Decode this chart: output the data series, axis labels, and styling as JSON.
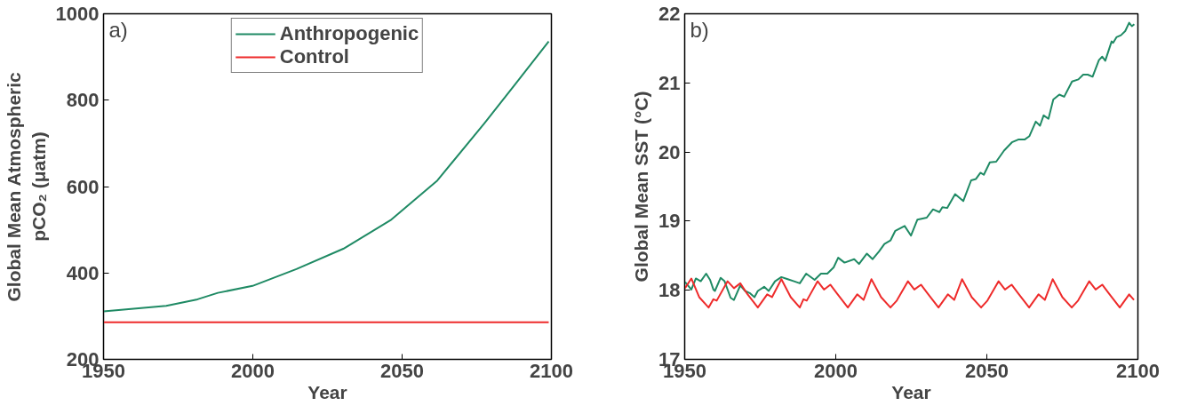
{
  "chart_data": [
    {
      "type": "line",
      "xlabel": "Year",
      "ylabel": "Global Mean Atmospheric\npCO₂ (μatm)",
      "annotations": [
        "a)"
      ],
      "xlim": [
        1950,
        2100
      ],
      "ylim": [
        200,
        1000
      ],
      "xticks": [
        1950,
        2000,
        2050,
        2100
      ],
      "yticks": [
        200,
        400,
        600,
        800,
        1000
      ],
      "grid": false,
      "legend": "top",
      "series": [
        {
          "name": "Anthropogenic",
          "color": "#1f8a64",
          "x": [
            1950,
            1971,
            1981.5,
            1988.3,
            1999.9,
            2014.6,
            2030.3,
            2046.1,
            2061.8,
            2077.6,
            2088.1,
            2099.1
          ],
          "values": [
            311,
            324,
            339,
            354,
            370,
            409,
            456,
            522,
            614,
            747,
            839,
            936
          ]
        },
        {
          "name": "Control",
          "color": "#ee2b2b",
          "x": [
            1950,
            2099.1
          ],
          "values": [
            286,
            286
          ]
        }
      ]
    },
    {
      "type": "line",
      "xlabel": "Year",
      "ylabel": "Global Mean SST (°C)",
      "annotations": [
        "b)"
      ],
      "xlim": [
        1950,
        2100
      ],
      "ylim": [
        17,
        22
      ],
      "xticks": [
        1950,
        2000,
        2050,
        2100
      ],
      "yticks": [
        17,
        18,
        19,
        20,
        21,
        22
      ],
      "grid": false,
      "series": [
        {
          "color": "#1f8a64",
          "x": [
            1950.1,
            1952.2,
            1953.7,
            1955.3,
            1957.1,
            1958.4,
            1959.5,
            1960.0,
            1961.9,
            1963.2,
            1965.2,
            1966.3,
            1968.4,
            1970.0,
            1971.5,
            1973.1,
            1974.2,
            1976.3,
            1977.8,
            1979.9,
            1982.0,
            1984.1,
            1986.2,
            1988.1,
            1990.2,
            1993.0,
            1995.1,
            1997.2,
            1999.3,
            2000.8,
            2002.9,
            2006.1,
            2007.7,
            2010.3,
            2012.2,
            2014.3,
            2016.1,
            2018.1,
            2019.7,
            2022.8,
            2024.9,
            2027.0,
            2030.1,
            2032.2,
            2034.3,
            2035.3,
            2036.9,
            2039.5,
            2042.2,
            2044.8,
            2046.4,
            2047.9,
            2049.0,
            2051.0,
            2053.1,
            2055.7,
            2058.3,
            2060.4,
            2062.5,
            2064.1,
            2066.2,
            2067.6,
            2068.8,
            2070.4,
            2072.0,
            2074.0,
            2075.6,
            2078.2,
            2080.3,
            2081.9,
            2083.4,
            2085.0,
            2087.1,
            2088.2,
            2089.2,
            2091.3,
            2091.8,
            2092.9,
            2094.4,
            2095.8,
            2097.1,
            2098.0,
            2098.8
          ],
          "values": [
            18.12,
            18.01,
            18.17,
            18.13,
            18.24,
            18.15,
            18.01,
            17.99,
            18.18,
            18.13,
            17.89,
            17.86,
            18.07,
            17.99,
            17.96,
            17.9,
            17.99,
            18.05,
            17.99,
            18.13,
            18.19,
            18.16,
            18.13,
            18.1,
            18.24,
            18.15,
            18.24,
            18.24,
            18.33,
            18.47,
            18.4,
            18.45,
            18.38,
            18.53,
            18.45,
            18.56,
            18.67,
            18.72,
            18.86,
            18.93,
            18.79,
            19.02,
            19.05,
            19.17,
            19.13,
            19.2,
            19.19,
            19.39,
            19.29,
            19.59,
            19.61,
            19.7,
            19.67,
            19.85,
            19.86,
            20.02,
            20.14,
            20.18,
            20.18,
            20.23,
            20.44,
            20.38,
            20.53,
            20.48,
            20.76,
            20.83,
            20.8,
            21.02,
            21.05,
            21.12,
            21.12,
            21.09,
            21.33,
            21.38,
            21.32,
            21.6,
            21.58,
            21.66,
            21.69,
            21.75,
            21.87,
            21.82,
            21.85
          ]
        },
        {
          "color": "#ee2b2b",
          "x": [
            1950.1,
            1952.2,
            1954.8,
            1957.9,
            1959.5,
            1960.6,
            1964.2,
            1966.3,
            1968.4,
            1970.5,
            1974.2,
            1977.3,
            1978.9,
            1982.0,
            1985.1,
            1988.1,
            1989.3,
            1990.4,
            1994.0,
            1996.1,
            1998.2,
            2000.3,
            2004.0,
            2007.1,
            2009.2,
            2011.8,
            2015.0,
            2018.1,
            2020.2,
            2023.9,
            2026.0,
            2028.2,
            2030.3,
            2034.0,
            2037.1,
            2039.2,
            2041.8,
            2045.0,
            2048.1,
            2050.2,
            2053.9,
            2056.0,
            2058.2,
            2060.3,
            2064.0,
            2067.1,
            2069.2,
            2071.8,
            2075.0,
            2078.1,
            2080.2,
            2083.9,
            2086.0,
            2088.2,
            2090.3,
            2094.0,
            2097.1,
            2098.7
          ],
          "values": [
            18.03,
            18.17,
            17.9,
            17.75,
            17.87,
            17.85,
            18.13,
            18.03,
            18.1,
            17.96,
            17.75,
            17.94,
            17.9,
            18.16,
            17.9,
            17.75,
            17.87,
            17.85,
            18.13,
            18.01,
            18.08,
            17.96,
            17.75,
            17.94,
            17.86,
            18.16,
            17.9,
            17.75,
            17.85,
            18.13,
            18.01,
            18.08,
            17.96,
            17.75,
            17.94,
            17.86,
            18.16,
            17.9,
            17.75,
            17.85,
            18.13,
            18.01,
            18.08,
            17.96,
            17.75,
            17.94,
            17.86,
            18.16,
            17.9,
            17.75,
            17.85,
            18.13,
            18.01,
            18.08,
            17.96,
            17.75,
            17.94,
            17.86
          ]
        }
      ]
    }
  ]
}
